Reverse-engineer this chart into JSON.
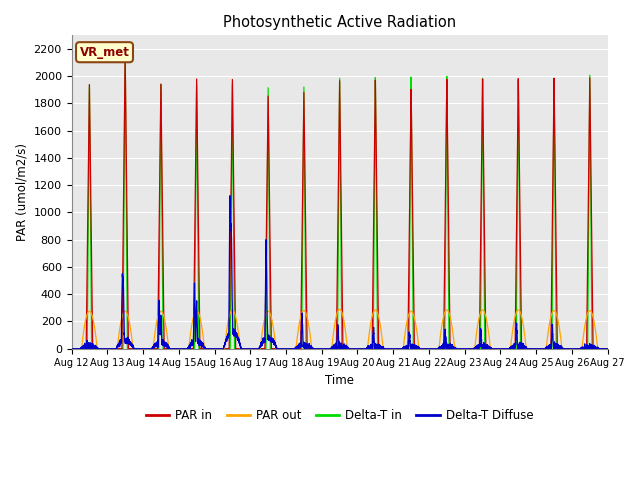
{
  "title": "Photosynthetic Active Radiation",
  "ylabel": "PAR (umol/m2/s)",
  "xlabel": "Time",
  "annotation": "VR_met",
  "ylim": [
    0,
    2300
  ],
  "background_color": "#e8e8e8",
  "grid_color": "#ffffff",
  "series": {
    "PAR_in": {
      "color": "#cc0000",
      "label": "PAR in"
    },
    "PAR_out": {
      "color": "#ffa500",
      "label": "PAR out"
    },
    "Delta_T_in": {
      "color": "#00dd00",
      "label": "Delta-T in"
    },
    "Delta_T_Diffuse": {
      "color": "#0000cc",
      "label": "Delta-T Diffuse"
    }
  },
  "x_tick_labels": [
    "Aug 12",
    "Aug 13",
    "Aug 14",
    "Aug 15",
    "Aug 16",
    "Aug 17",
    "Aug 18",
    "Aug 19",
    "Aug 20",
    "Aug 21",
    "Aug 22",
    "Aug 23",
    "Aug 24",
    "Aug 25",
    "Aug 26",
    "Aug 27"
  ],
  "num_days": 15,
  "peak_heights_PAR_in": [
    1940,
    2180,
    1950,
    1990,
    1990,
    1870,
    1900,
    1990,
    1990,
    1920,
    1990,
    1990,
    1990,
    1990,
    1990
  ],
  "peak_heights_PAR_out": [
    275,
    275,
    275,
    280,
    285,
    275,
    280,
    290,
    285,
    275,
    285,
    285,
    285,
    280,
    280
  ],
  "peak_heights_Delta_T_in": [
    1940,
    2260,
    1950,
    1950,
    1960,
    1940,
    1950,
    2020,
    2020,
    2020,
    2020,
    2000,
    1990,
    1990,
    2010
  ],
  "peak_heights_Delta_T_Diffuse": [
    150,
    500,
    340,
    430,
    1020,
    660,
    230,
    160,
    130,
    110,
    120,
    130,
    160,
    170,
    50
  ],
  "yticks": [
    0,
    200,
    400,
    600,
    800,
    1000,
    1200,
    1400,
    1600,
    1800,
    2000,
    2200
  ]
}
